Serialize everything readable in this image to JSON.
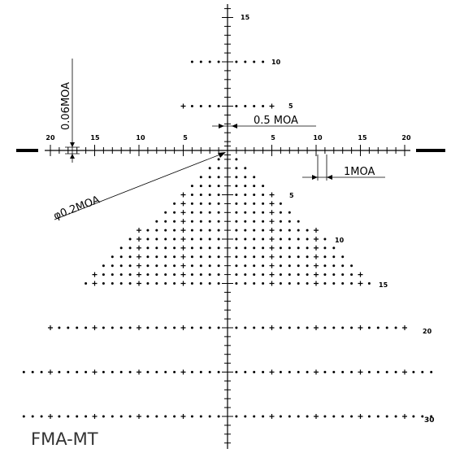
{
  "reticle_name": "FMA-MT",
  "annotations": {
    "line_width": "0.06MOA",
    "half_moa": "0.5 MOA",
    "one_moa": "1MOA",
    "dot_diameter": "φ0.2MOA"
  },
  "horizontal_scale_labels": [
    "20",
    "15",
    "10",
    "5",
    "5",
    "10",
    "15",
    "20"
  ],
  "vertical_scale_labels": [
    "15",
    "10",
    "5",
    "5",
    "10",
    "15",
    "20",
    "30"
  ],
  "colors": {
    "ink": "#000000",
    "label": "#333333"
  }
}
